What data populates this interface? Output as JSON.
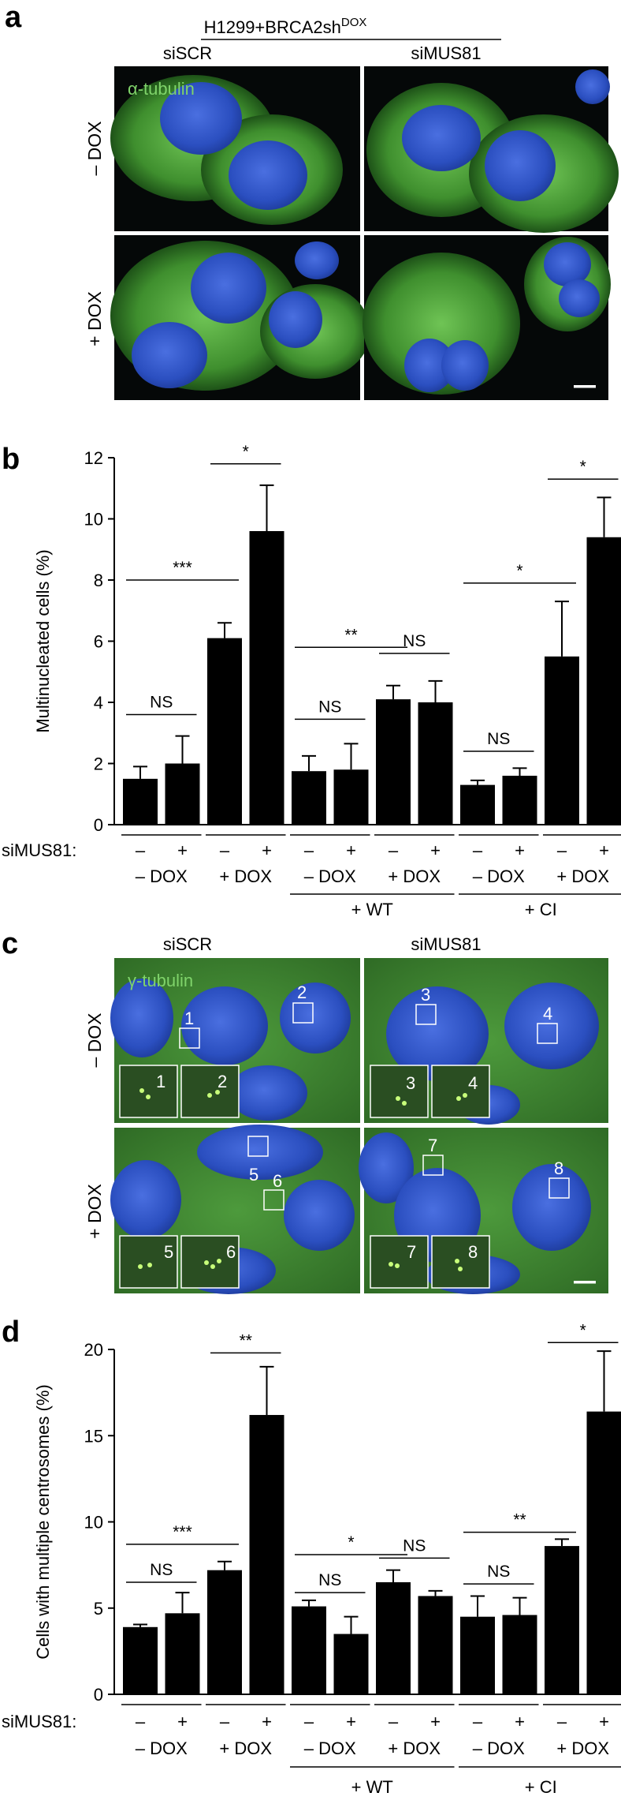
{
  "panel_a": {
    "letter": "a",
    "header_main": "H1299+BRCA2sh",
    "header_sup": "DOX",
    "col_labels": [
      "siSCR",
      "siMUS81"
    ],
    "row_labels": [
      "– DOX",
      "+ DOX"
    ],
    "stain_label": "α-tubulin"
  },
  "panel_c": {
    "letter": "c",
    "col_labels": [
      "siSCR",
      "siMUS81"
    ],
    "row_labels": [
      "– DOX",
      "+ DOX"
    ],
    "stain_label": "γ-tubulin",
    "cell_numbers": [
      "1",
      "2",
      "3",
      "4",
      "5",
      "6",
      "7",
      "8"
    ]
  },
  "colors": {
    "bar": "#000000",
    "nucleus": "#2b4fc0",
    "cytoplasm": "#58b040",
    "micrograph_bg": "#050808"
  },
  "chart_data": [
    {
      "panel": "b",
      "type": "bar",
      "ylabel": "Multinucleated cells (%)",
      "ylim": [
        0,
        12
      ],
      "yticks": [
        0,
        2,
        4,
        6,
        8,
        10,
        12
      ],
      "row_label": "siMUS81:",
      "categories": [
        "–",
        "+",
        "–",
        "+",
        "–",
        "+",
        "–",
        "+",
        "–",
        "+",
        "–",
        "+"
      ],
      "values": [
        1.5,
        2.0,
        6.1,
        9.6,
        1.75,
        1.8,
        4.1,
        4.0,
        1.3,
        1.6,
        5.5,
        9.4
      ],
      "errors": [
        0.4,
        0.9,
        0.5,
        1.5,
        0.5,
        0.85,
        0.45,
        0.7,
        0.15,
        0.25,
        1.8,
        1.3
      ],
      "groups": [
        "– DOX",
        "+ DOX",
        "– DOX",
        "+ DOX",
        "– DOX",
        "+ DOX"
      ],
      "supergroups": [
        {
          "label": "+ WT",
          "from_group": 2,
          "to_group": 3
        },
        {
          "label": "+ CI",
          "from_group": 4,
          "to_group": 5
        }
      ],
      "significance": [
        {
          "a": 0,
          "b": 1,
          "label": "NS",
          "y": 3.6
        },
        {
          "a": 0,
          "b": 2,
          "label": "***",
          "y": 8.0
        },
        {
          "a": 2,
          "b": 3,
          "label": "*",
          "y": 11.8
        },
        {
          "a": 4,
          "b": 5,
          "label": "NS",
          "y": 3.45
        },
        {
          "a": 4,
          "b": 6,
          "label": "**",
          "y": 5.8
        },
        {
          "a": 6,
          "b": 7,
          "label": "NS",
          "y": 5.6
        },
        {
          "a": 8,
          "b": 9,
          "label": "NS",
          "y": 2.4
        },
        {
          "a": 8,
          "b": 10,
          "label": "*",
          "y": 7.9
        },
        {
          "a": 10,
          "b": 11,
          "label": "*",
          "y": 11.3
        }
      ]
    },
    {
      "panel": "d",
      "type": "bar",
      "ylabel": "Cells with multiple centrosomes (%)",
      "ylim": [
        0,
        20
      ],
      "yticks": [
        0,
        5,
        10,
        15,
        20
      ],
      "row_label": "siMUS81:",
      "categories": [
        "–",
        "+",
        "–",
        "+",
        "–",
        "+",
        "–",
        "+",
        "–",
        "+",
        "–",
        "+"
      ],
      "values": [
        3.9,
        4.7,
        7.2,
        16.2,
        5.1,
        3.5,
        6.5,
        5.7,
        4.5,
        4.6,
        8.6,
        16.4
      ],
      "errors": [
        0.15,
        1.2,
        0.5,
        2.8,
        0.35,
        1.0,
        0.7,
        0.3,
        1.2,
        1.0,
        0.4,
        3.5
      ],
      "groups": [
        "– DOX",
        "+ DOX",
        "– DOX",
        "+ DOX",
        "– DOX",
        "+ DOX"
      ],
      "supergroups": [
        {
          "label": "+ WT",
          "from_group": 2,
          "to_group": 3
        },
        {
          "label": "+ CI",
          "from_group": 4,
          "to_group": 5
        }
      ],
      "significance": [
        {
          "a": 0,
          "b": 1,
          "label": "NS",
          "y": 6.5
        },
        {
          "a": 0,
          "b": 2,
          "label": "***",
          "y": 8.7
        },
        {
          "a": 2,
          "b": 3,
          "label": "**",
          "y": 19.8
        },
        {
          "a": 4,
          "b": 5,
          "label": "NS",
          "y": 5.9
        },
        {
          "a": 4,
          "b": 6,
          "label": "*",
          "y": 8.1
        },
        {
          "a": 6,
          "b": 7,
          "label": "NS",
          "y": 7.9
        },
        {
          "a": 8,
          "b": 9,
          "label": "NS",
          "y": 6.4
        },
        {
          "a": 8,
          "b": 10,
          "label": "**",
          "y": 9.4
        },
        {
          "a": 10,
          "b": 11,
          "label": "*",
          "y": 20.4
        }
      ]
    }
  ]
}
